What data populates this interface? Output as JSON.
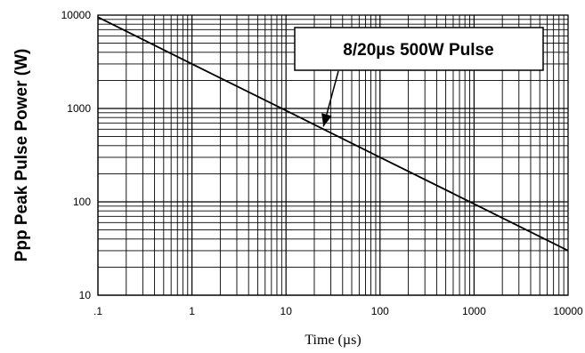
{
  "chart_data": {
    "type": "line",
    "title": "",
    "xlabel": "Time (µs)",
    "ylabel": "Ppp  Peak Pulse Power (W)",
    "x_scale": "log",
    "y_scale": "log",
    "xlim": [
      0.1,
      10000
    ],
    "ylim": [
      10,
      10000
    ],
    "x_ticks": [
      0.1,
      1,
      10,
      100,
      1000,
      10000
    ],
    "x_tick_labels": [
      ".1",
      "1",
      "10",
      "100",
      "1000",
      "10000"
    ],
    "y_ticks": [
      10,
      100,
      1000,
      10000
    ],
    "y_tick_labels": [
      "10",
      "100",
      "1000",
      "10000"
    ],
    "grid": true,
    "series": [
      {
        "x": [
          0.1,
          1,
          10,
          100,
          1000,
          10000
        ],
        "y": [
          9500,
          3000,
          950,
          300,
          95,
          30
        ]
      }
    ],
    "annotations": [
      {
        "text": "8/20µs 500W Pulse",
        "arrow_to": {
          "x": 25,
          "y": 640
        }
      }
    ]
  },
  "colors": {
    "line": "#000000",
    "grid": "#000000",
    "background": "#ffffff"
  }
}
